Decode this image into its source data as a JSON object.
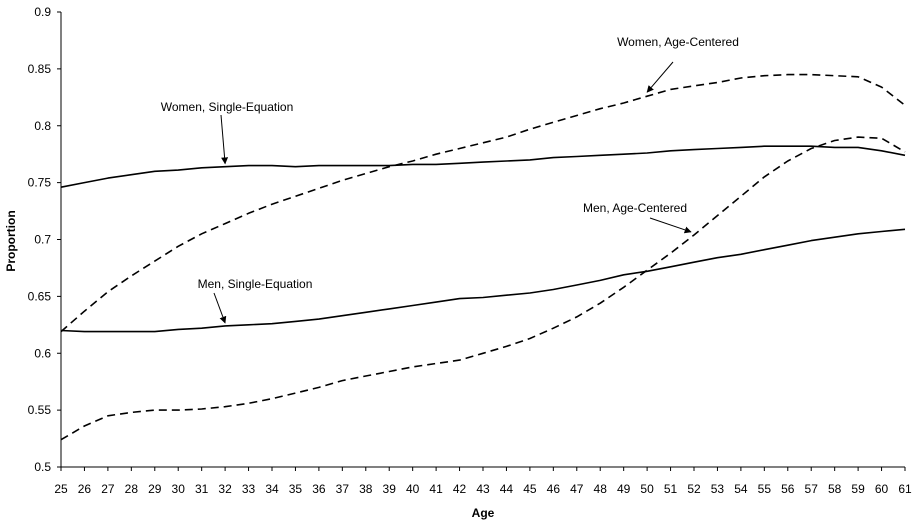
{
  "chart_data": {
    "type": "line",
    "title": "",
    "xlabel": "Age",
    "ylabel": "Proportion",
    "xlim": [
      25,
      61
    ],
    "ylim": [
      0.5,
      0.9
    ],
    "yticks": [
      0.5,
      0.55,
      0.6,
      0.65,
      0.7,
      0.75,
      0.8,
      0.85,
      0.9
    ],
    "ytick_labels": [
      "0.5",
      "0.55",
      "0.6",
      "0.65",
      "0.7",
      "0.75",
      "0.8",
      "0.85",
      "0.9"
    ],
    "grid": false,
    "legend": "none",
    "x": [
      25,
      26,
      27,
      28,
      29,
      30,
      31,
      32,
      33,
      34,
      35,
      36,
      37,
      38,
      39,
      40,
      41,
      42,
      43,
      44,
      45,
      46,
      47,
      48,
      49,
      50,
      51,
      52,
      53,
      54,
      55,
      56,
      57,
      58,
      59,
      60,
      61
    ],
    "series": [
      {
        "name": "Women, Single-Equation",
        "style": "solid",
        "color": "#000000",
        "values": [
          0.746,
          0.75,
          0.754,
          0.757,
          0.76,
          0.761,
          0.763,
          0.764,
          0.765,
          0.765,
          0.764,
          0.765,
          0.765,
          0.765,
          0.765,
          0.766,
          0.766,
          0.767,
          0.768,
          0.769,
          0.77,
          0.772,
          0.773,
          0.774,
          0.775,
          0.776,
          0.778,
          0.779,
          0.78,
          0.781,
          0.782,
          0.782,
          0.782,
          0.781,
          0.781,
          0.778,
          0.774
        ]
      },
      {
        "name": "Women, Age-Centered",
        "style": "dashed",
        "color": "#000000",
        "values": [
          0.619,
          0.637,
          0.654,
          0.668,
          0.681,
          0.694,
          0.705,
          0.714,
          0.723,
          0.731,
          0.738,
          0.745,
          0.752,
          0.758,
          0.764,
          0.769,
          0.775,
          0.78,
          0.785,
          0.79,
          0.797,
          0.803,
          0.809,
          0.815,
          0.82,
          0.826,
          0.832,
          0.835,
          0.838,
          0.842,
          0.844,
          0.845,
          0.845,
          0.844,
          0.843,
          0.834,
          0.818
        ]
      },
      {
        "name": "Men, Single-Equation",
        "style": "solid",
        "color": "#000000",
        "values": [
          0.62,
          0.619,
          0.619,
          0.619,
          0.619,
          0.621,
          0.622,
          0.624,
          0.625,
          0.626,
          0.628,
          0.63,
          0.633,
          0.636,
          0.639,
          0.642,
          0.645,
          0.648,
          0.649,
          0.651,
          0.653,
          0.656,
          0.66,
          0.664,
          0.669,
          0.672,
          0.676,
          0.68,
          0.684,
          0.687,
          0.691,
          0.695,
          0.699,
          0.702,
          0.705,
          0.707,
          0.709
        ]
      },
      {
        "name": "Men, Age-Centered",
        "style": "dashed",
        "color": "#000000",
        "values": [
          0.524,
          0.536,
          0.545,
          0.548,
          0.55,
          0.55,
          0.551,
          0.553,
          0.556,
          0.56,
          0.565,
          0.57,
          0.576,
          0.58,
          0.584,
          0.588,
          0.591,
          0.594,
          0.6,
          0.606,
          0.613,
          0.622,
          0.632,
          0.644,
          0.658,
          0.673,
          0.688,
          0.704,
          0.721,
          0.738,
          0.755,
          0.769,
          0.78,
          0.787,
          0.79,
          0.789,
          0.777
        ]
      }
    ],
    "annotations": [
      {
        "text": "Women, Age-Centered",
        "series": "Women, Age-Centered",
        "arrow_at_x": 50
      },
      {
        "text": "Women, Single-Equation",
        "series": "Women, Single-Equation",
        "arrow_at_x": 32
      },
      {
        "text": "Men, Age-Centered",
        "series": "Men, Age-Centered",
        "arrow_at_x": 52
      },
      {
        "text": "Men, Single-Equation",
        "series": "Men, Single-Equation",
        "arrow_at_x": 32
      }
    ]
  }
}
